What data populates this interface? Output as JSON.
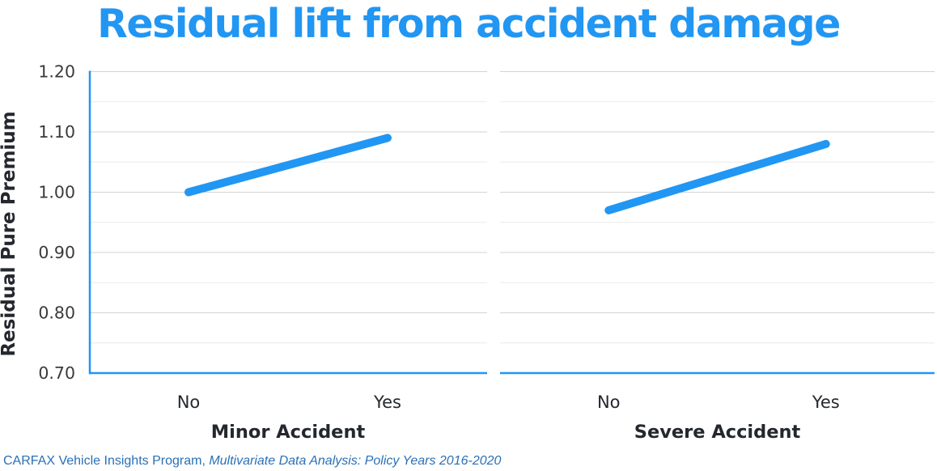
{
  "title": "Residual lift from accident damage",
  "footer": {
    "source": "CARFAX Vehicle Insights Program, ",
    "citation": "Multivariate Data Analysis: Policy Years 2016-2020"
  },
  "colors": {
    "accent": "#2196f3",
    "title_blue": "#2196f3",
    "footer_blue": "#2a70b5",
    "grid_major": "#d3d3d3",
    "grid_minor": "#eaeaea",
    "text_dark": "#24282e",
    "text_tick": "#3a3a3a"
  },
  "chart_data": {
    "type": "line",
    "title": "Residual lift from accident damage",
    "ylabel": "Residual Pure Premium",
    "ylim": [
      0.7,
      1.2
    ],
    "yticks": [
      0.7,
      0.8,
      0.9,
      1.0,
      1.1,
      1.2
    ],
    "ytick_minor_step": 0.05,
    "grid": true,
    "legend": false,
    "categories": [
      "No",
      "Yes"
    ],
    "panels": [
      {
        "xlabel": "Minor Accident",
        "series": [
          {
            "name": "Residual Pure Premium",
            "values": [
              1.0,
              1.09
            ]
          }
        ]
      },
      {
        "xlabel": "Severe Accident",
        "series": [
          {
            "name": "Residual Pure Premium",
            "values": [
              0.97,
              1.08
            ]
          }
        ]
      }
    ]
  }
}
